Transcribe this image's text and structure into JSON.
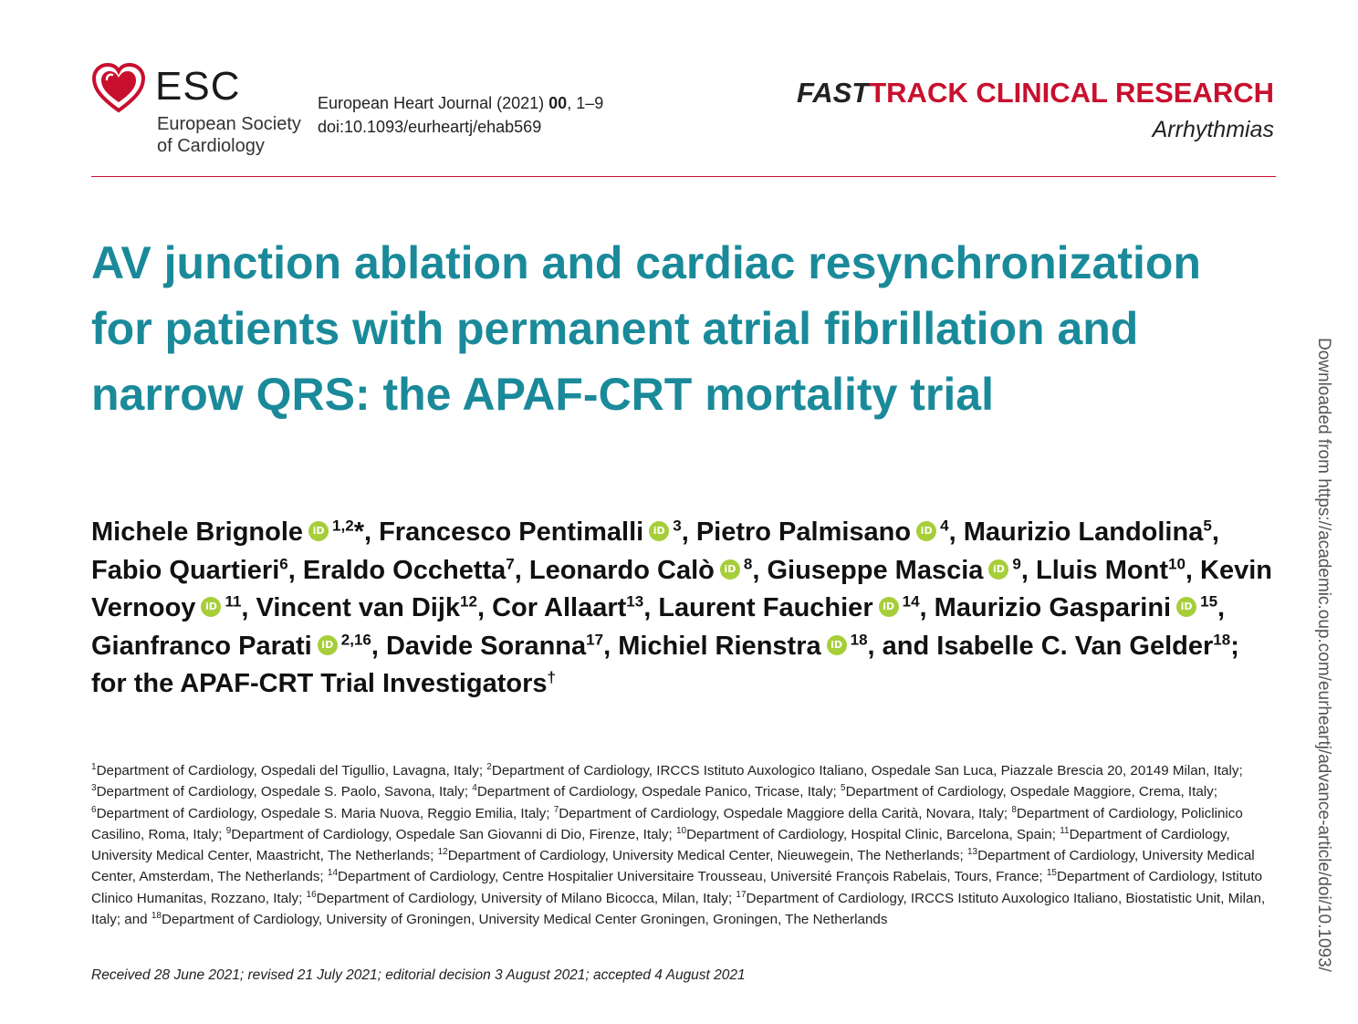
{
  "logo": {
    "abbr": "ESC",
    "line1": "European Society",
    "line2": "of Cardiology",
    "color": "#c8102e"
  },
  "journal": {
    "name": "European Heart Journal (2021)",
    "volume": "00",
    "pages": ", 1–9",
    "doi": "doi:10.1093/eurheartj/ehab569"
  },
  "header": {
    "fast": "FAST",
    "track": "TRACK CLINICAL RESEARCH",
    "section": "Arrhythmias"
  },
  "title": "AV junction ablation and cardiac resynchronization for patients with permanent atrial fibrillation and narrow QRS: the APAF-CRT mortality trial",
  "authors": [
    {
      "name": "Michele Brignole",
      "orcid": true,
      "sup": "1,2",
      "suffix": "*, "
    },
    {
      "name": "Francesco Pentimalli",
      "orcid": true,
      "sup": "3",
      "suffix": ", "
    },
    {
      "name": "Pietro Palmisano",
      "orcid": true,
      "sup": "4",
      "suffix": ", "
    },
    {
      "name": "Maurizio Landolina",
      "orcid": false,
      "sup": "5",
      "suffix": ", "
    },
    {
      "name": "Fabio Quartieri",
      "orcid": false,
      "sup": "6",
      "suffix": ", "
    },
    {
      "name": "Eraldo Occhetta",
      "orcid": false,
      "sup": "7",
      "suffix": ", "
    },
    {
      "name": "Leonardo Calò",
      "orcid": true,
      "sup": "8",
      "suffix": ", "
    },
    {
      "name": "Giuseppe Mascia",
      "orcid": true,
      "sup": "9",
      "suffix": ", "
    },
    {
      "name": "Lluis Mont",
      "orcid": false,
      "sup": "10",
      "suffix": ", "
    },
    {
      "name": "Kevin Vernooy",
      "orcid": true,
      "sup": "11",
      "suffix": ", "
    },
    {
      "name": "Vincent van Dijk",
      "orcid": false,
      "sup": "12",
      "suffix": ", "
    },
    {
      "name": "Cor Allaart",
      "orcid": false,
      "sup": "13",
      "suffix": ", "
    },
    {
      "name": "Laurent Fauchier",
      "orcid": true,
      "sup": "14",
      "suffix": ", "
    },
    {
      "name": "Maurizio Gasparini",
      "orcid": true,
      "sup": "15",
      "suffix": ", "
    },
    {
      "name": "Gianfranco Parati",
      "orcid": true,
      "sup": "2,16",
      "suffix": ", "
    },
    {
      "name": "Davide Soranna",
      "orcid": false,
      "sup": "17",
      "suffix": ", "
    },
    {
      "name": "Michiel Rienstra",
      "orcid": true,
      "sup": "18",
      "suffix": ", and "
    },
    {
      "name": "Isabelle C. Van Gelder",
      "orcid": false,
      "sup": "18",
      "suffix": "; for the APAF-CRT Trial Investigators"
    }
  ],
  "authors_dagger": "†",
  "orcid_glyph": "iD",
  "affiliations": [
    {
      "num": "1",
      "text": "Department of Cardiology, Ospedali del Tigullio, Lavagna, Italy; "
    },
    {
      "num": "2",
      "text": "Department of Cardiology, IRCCS Istituto Auxologico Italiano, Ospedale San Luca, Piazzale Brescia 20, 20149 Milan, Italy; "
    },
    {
      "num": "3",
      "text": "Department of Cardiology, Ospedale S. Paolo, Savona, Italy; "
    },
    {
      "num": "4",
      "text": "Department of Cardiology, Ospedale Panico, Tricase, Italy; "
    },
    {
      "num": "5",
      "text": "Department of Cardiology, Ospedale Maggiore, Crema, Italy; "
    },
    {
      "num": "6",
      "text": "Department of Cardiology, Ospedale S. Maria Nuova, Reggio Emilia, Italy; "
    },
    {
      "num": "7",
      "text": "Department of Cardiology, Ospedale Maggiore della Carità, Novara, Italy; "
    },
    {
      "num": "8",
      "text": "Department of Cardiology, Policlinico Casilino, Roma, Italy; "
    },
    {
      "num": "9",
      "text": "Department of Cardiology, Ospedale San Giovanni di Dio, Firenze, Italy; "
    },
    {
      "num": "10",
      "text": "Department of Cardiology, Hospital Clinic, Barcelona, Spain; "
    },
    {
      "num": "11",
      "text": "Department of Cardiology, University Medical Center, Maastricht, The Netherlands; "
    },
    {
      "num": "12",
      "text": "Department of Cardiology, University Medical Center, Nieuwegein, The Netherlands; "
    },
    {
      "num": "13",
      "text": "Department of Cardiology, University Medical Center, Amsterdam, The Netherlands; "
    },
    {
      "num": "14",
      "text": "Department of Cardiology, Centre Hospitalier Universitaire Trousseau, Université François Rabelais, Tours, France; "
    },
    {
      "num": "15",
      "text": "Department of Cardiology, Istituto Clinico Humanitas, Rozzano, Italy; "
    },
    {
      "num": "16",
      "text": "Department of Cardiology, University of Milano Bicocca, Milan, Italy; "
    },
    {
      "num": "17",
      "text": "Department of Cardiology, IRCCS Istituto Auxologico Italiano, Biostatistic Unit, Milan, Italy; and "
    },
    {
      "num": "18",
      "text": "Department of Cardiology, University of Groningen, University Medical Center Groningen, Groningen, The Netherlands"
    }
  ],
  "received": "Received 28 June 2021; revised 21 July 2021; editorial decision 3 August 2021; accepted 4 August 2021",
  "side_note": "Downloaded from https://academic.oup.com/eurheartj/advance-article/doi/10.1093/",
  "colors": {
    "title": "#1a8a9a",
    "accent": "#c8102e",
    "orcid": "#a6ce39"
  }
}
